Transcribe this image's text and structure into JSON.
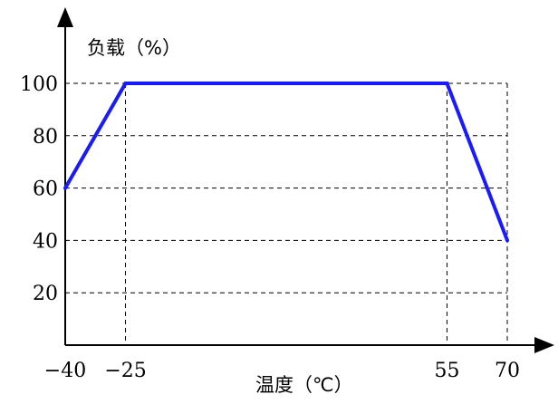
{
  "chart_data": {
    "type": "line",
    "title": "",
    "xlabel": "温度（℃）",
    "ylabel": "负载（%）",
    "x_ticks": [
      -40,
      -25,
      55,
      70
    ],
    "x_tick_labels": [
      "−40",
      "−25",
      "55",
      "70"
    ],
    "y_ticks": [
      20,
      40,
      60,
      80,
      100
    ],
    "y_tick_labels": [
      "20",
      "40",
      "60",
      "80",
      "100"
    ],
    "xlim": [
      -40,
      70
    ],
    "ylim": [
      0,
      100
    ],
    "grid": true,
    "series": [
      {
        "color": "#1a1aff",
        "points": [
          {
            "x": -40,
            "y": 60
          },
          {
            "x": -25,
            "y": 100
          },
          {
            "x": 55,
            "y": 100
          },
          {
            "x": 70,
            "y": 40
          }
        ]
      }
    ]
  }
}
